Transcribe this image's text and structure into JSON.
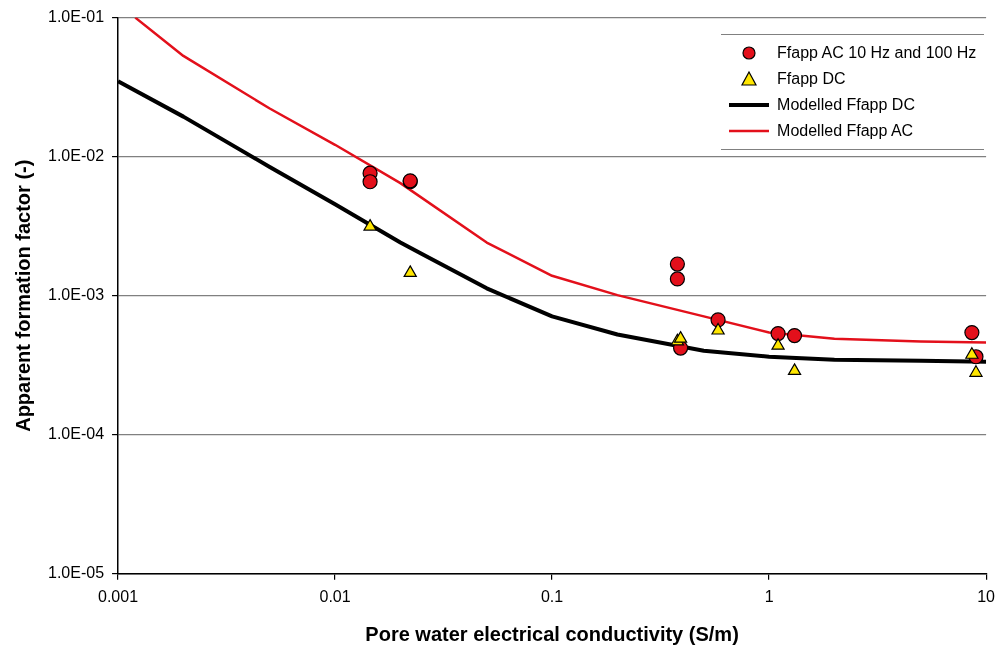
{
  "chart_data": {
    "type": "scatter",
    "xlabel": "Pore water electrical conductivity (S/m)",
    "ylabel": "Apparent formation factor (-)",
    "log": "xy",
    "xlim": [
      0.001,
      10
    ],
    "xticks": [
      0.001,
      0.01,
      0.1,
      1,
      10
    ],
    "ylim": [
      1e-05,
      0.1
    ],
    "yticks": [
      {
        "value": 1e-05,
        "label": "1.0E-05"
      },
      {
        "value": 0.0001,
        "label": "1.0E-04"
      },
      {
        "value": 0.001,
        "label": "1.0E-03"
      },
      {
        "value": 0.01,
        "label": "1.0E-02"
      },
      {
        "value": 0.1,
        "label": "1.0E-01"
      }
    ],
    "grid": "y",
    "legend": "top right",
    "series": [
      {
        "name": "Ffapp AC 10 Hz and 100 Hz",
        "marker": "circle",
        "color": "#e3101b",
        "x": [
          0.0145,
          0.0145,
          0.0222,
          0.0222,
          0.378,
          0.378,
          0.391,
          0.582,
          1.1,
          1.31,
          8.6,
          8.98
        ],
        "values": [
          0.0076,
          0.0066,
          0.0066,
          0.0067,
          0.00169,
          0.00132,
          0.00042,
          0.00067,
          0.000534,
          0.000517,
          0.000543,
          0.000364
        ]
      },
      {
        "name": "Ffapp DC",
        "marker": "triangle",
        "color": "#ffe600",
        "x": [
          0.0145,
          0.0222,
          0.378,
          0.391,
          0.582,
          1.1,
          1.31,
          8.6,
          8.98
        ],
        "values": [
          0.00314,
          0.00146,
          0.00047,
          0.000491,
          0.000562,
          0.000437,
          0.000288,
          0.000376,
          0.000279
        ]
      },
      {
        "name": "Modelled Ffapp DC",
        "type": "line",
        "marker": "none",
        "color": "#000000",
        "x": [
          0.001,
          0.002,
          0.005,
          0.01,
          0.02,
          0.05,
          0.1,
          0.2,
          0.5,
          1,
          2,
          5,
          10
        ],
        "values": [
          0.0349,
          0.0194,
          0.00843,
          0.00454,
          0.00241,
          0.00113,
          0.00071,
          0.000526,
          0.000402,
          0.000364,
          0.000346,
          0.00034,
          0.000335
        ]
      },
      {
        "name": "Modelled Ffapp AC",
        "type": "line",
        "marker": "none",
        "color": "#e3101b",
        "x": [
          0.0012,
          0.002,
          0.005,
          0.01,
          0.02,
          0.05,
          0.1,
          0.2,
          0.5,
          1,
          2,
          5,
          10
        ],
        "values": [
          0.1,
          0.053,
          0.0222,
          0.01217,
          0.00645,
          0.00241,
          0.00139,
          0.00101,
          0.00071,
          0.000543,
          0.000491,
          0.000468,
          0.00046
        ]
      }
    ]
  }
}
